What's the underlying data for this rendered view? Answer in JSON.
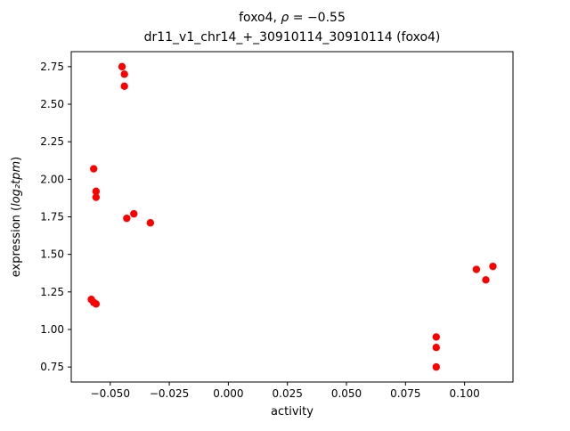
{
  "chart_data": {
    "type": "scatter",
    "title": "foxo4, ρ = −0.55",
    "title_prefix": "foxo4, ",
    "title_rho": "ρ",
    "title_rest": " = −0.55",
    "subtitle": "dr11_v1_chr14_+_30910114_30910114 (foxo4)",
    "xlabel": "activity",
    "ylabel": "expression (log₂tpm)",
    "ylabel_prefix": "expression (",
    "ylabel_math": "log₂tpm",
    "ylabel_suffix": ")",
    "marker_color": "#ff0000",
    "marker_radius": 4.2,
    "xlim": [
      -0.0665,
      0.1205
    ],
    "ylim": [
      0.65,
      2.85
    ],
    "xticks": [
      -0.05,
      -0.025,
      0.0,
      0.025,
      0.05,
      0.075,
      0.1
    ],
    "yticks": [
      0.75,
      1.0,
      1.25,
      1.5,
      1.75,
      2.0,
      2.25,
      2.5,
      2.75
    ],
    "grid": false,
    "legend": null,
    "points": [
      {
        "x": -0.045,
        "y": 2.75
      },
      {
        "x": -0.044,
        "y": 2.7
      },
      {
        "x": -0.044,
        "y": 2.62
      },
      {
        "x": -0.057,
        "y": 2.07
      },
      {
        "x": -0.056,
        "y": 1.92
      },
      {
        "x": -0.056,
        "y": 1.88
      },
      {
        "x": -0.043,
        "y": 1.74
      },
      {
        "x": -0.04,
        "y": 1.77
      },
      {
        "x": -0.033,
        "y": 1.71
      },
      {
        "x": -0.058,
        "y": 1.2
      },
      {
        "x": -0.057,
        "y": 1.18
      },
      {
        "x": -0.056,
        "y": 1.17
      },
      {
        "x": 0.105,
        "y": 1.4
      },
      {
        "x": 0.112,
        "y": 1.42
      },
      {
        "x": 0.109,
        "y": 1.33
      },
      {
        "x": 0.088,
        "y": 0.95
      },
      {
        "x": 0.088,
        "y": 0.88
      },
      {
        "x": 0.088,
        "y": 0.75
      }
    ]
  }
}
